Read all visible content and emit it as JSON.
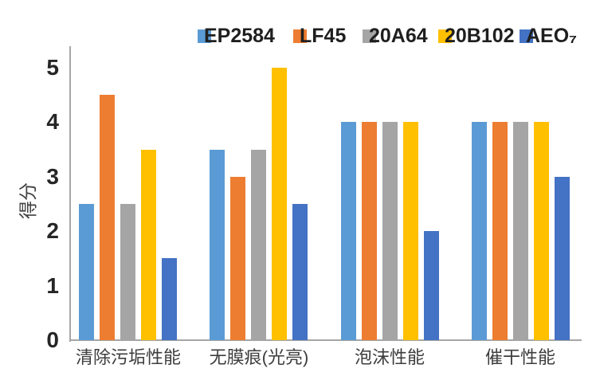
{
  "chart_data": {
    "type": "bar",
    "title": "",
    "ylabel": "得分",
    "xlabel": "",
    "categories": [
      "清除污垢性能",
      "无膜痕(光亮)",
      "泡沫性能",
      "催干性能"
    ],
    "series": [
      {
        "name": "EP2584",
        "color": "#5B9BD5",
        "values": [
          2.5,
          3.5,
          4,
          4
        ]
      },
      {
        "name": "LF45",
        "color": "#ED7D31",
        "values": [
          4.5,
          3,
          4,
          4
        ]
      },
      {
        "name": "20A64",
        "color": "#A5A5A5",
        "values": [
          2.5,
          3.5,
          4,
          4
        ]
      },
      {
        "name": "20B102",
        "color": "#FFC000",
        "values": [
          3.5,
          5,
          4,
          4
        ]
      },
      {
        "name": "AEO₇",
        "color": "#4472C4",
        "values": [
          1.5,
          2.5,
          2,
          3
        ]
      }
    ],
    "y_ticks": [
      0,
      1,
      2,
      3,
      4,
      5
    ],
    "ylim": [
      0,
      5
    ],
    "legend_position": "top",
    "gridlines": false,
    "axis_color": "#A6A6A6",
    "text_color": "#3D3D3D"
  }
}
